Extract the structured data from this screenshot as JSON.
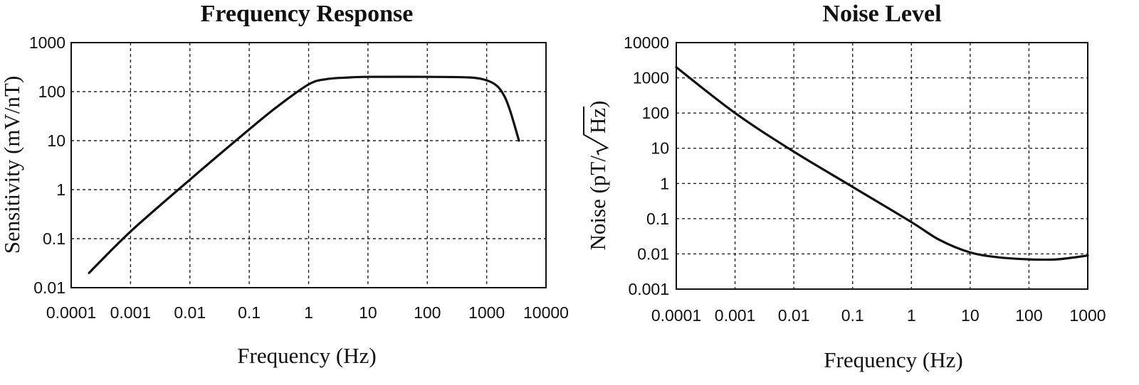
{
  "chart_data": [
    {
      "type": "line",
      "title": "Frequency Response",
      "xlabel": "Frequency (Hz)",
      "ylabel": "Sensitivity (mV/nT)",
      "xscale": "log",
      "yscale": "log",
      "xlim": [
        0.0001,
        10000
      ],
      "ylim": [
        0.01,
        1000
      ],
      "grid": true,
      "xticks": [
        "0.0001",
        "0.001",
        "0.01",
        "0.1",
        "1",
        "10",
        "100",
        "1000",
        "10000"
      ],
      "yticks": [
        "0.01",
        "0.1",
        "1",
        "10",
        "100",
        "1000"
      ],
      "series": [
        {
          "x": [
            0.0002,
            0.001,
            0.01,
            0.1,
            0.3,
            1,
            2,
            5,
            10,
            100,
            500,
            1000,
            1500,
            2000,
            2500,
            3500
          ],
          "values": [
            0.02,
            0.14,
            1.6,
            17,
            50,
            140,
            180,
            195,
            200,
            200,
            195,
            170,
            130,
            80,
            40,
            10
          ]
        }
      ]
    },
    {
      "type": "line",
      "title": "Noise Level",
      "xlabel": "Frequency (Hz)",
      "ylabel_main": "Noise (pT/",
      "ylabel_radicand": "Hz",
      "ylabel_close": ")",
      "xscale": "log",
      "yscale": "log",
      "xlim": [
        0.0001,
        1000
      ],
      "ylim": [
        0.001,
        10000
      ],
      "grid": true,
      "xticks": [
        "0.0001",
        "0.001",
        "0.01",
        "0.1",
        "1",
        "10",
        "100",
        "1000"
      ],
      "yticks": [
        "0.001",
        "0.01",
        "0.1",
        "1",
        "10",
        "100",
        "1000",
        "10000"
      ],
      "series": [
        {
          "x": [
            0.0001,
            0.001,
            0.01,
            0.1,
            1,
            3,
            10,
            30,
            100,
            300,
            1000
          ],
          "values": [
            2000,
            100,
            8,
            0.8,
            0.08,
            0.025,
            0.011,
            0.008,
            0.007,
            0.007,
            0.009
          ]
        }
      ]
    }
  ]
}
